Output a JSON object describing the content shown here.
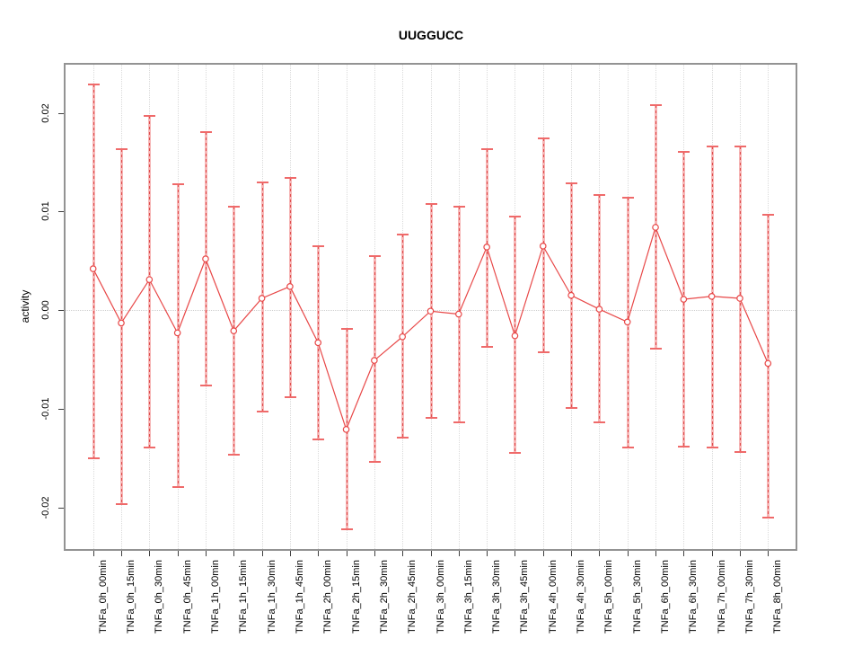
{
  "title": "UUGGUCC",
  "chart_data": {
    "type": "line",
    "title": "UUGGUCC",
    "xlabel": "",
    "ylabel": "activity",
    "ylim": [
      -0.0246,
      0.0249
    ],
    "grid": "vertical dotted gridline per category; dotted horizontal reference line at y=0",
    "legend": "none",
    "marker": "open-circle",
    "error_bars": true,
    "yticks": [
      0.02,
      0.01,
      0.0,
      -0.01,
      -0.02
    ],
    "ytick_labels": [
      "0.02",
      "0.01",
      "0.00",
      "-0.01",
      "-0.02"
    ],
    "categories": [
      "TNFa_0h_00min",
      "TNFa_0h_15min",
      "TNFa_0h_30min",
      "TNFa_0h_45min",
      "TNFa_1h_00min",
      "TNFa_1h_15min",
      "TNFa_1h_30min",
      "TNFa_1h_45min",
      "TNFa_2h_00min",
      "TNFa_2h_15min",
      "TNFa_2h_30min",
      "TNFa_2h_45min",
      "TNFa_3h_00min",
      "TNFa_3h_15min",
      "TNFa_3h_30min",
      "TNFa_3h_45min",
      "TNFa_4h_00min",
      "TNFa_4h_30min",
      "TNFa_5h_00min",
      "TNFa_5h_30min",
      "TNFa_6h_00min",
      "TNFa_6h_30min",
      "TNFa_7h_00min",
      "TNFa_7h_30min",
      "TNFa_8h_00min"
    ],
    "series": [
      {
        "name": "activity",
        "values": [
          0.0042,
          -0.0013,
          0.0031,
          -0.0023,
          0.0052,
          -0.0021,
          0.0012,
          0.0024,
          -0.0033,
          -0.0121,
          -0.0051,
          -0.0027,
          -0.0001,
          -0.0004,
          0.0064,
          -0.0026,
          0.0065,
          0.0015,
          0.0001,
          -0.0012,
          0.0084,
          0.0011,
          0.0014,
          0.0012,
          -0.0054
        ],
        "upper": [
          0.0229,
          0.0163,
          0.0197,
          0.0128,
          0.0181,
          0.0105,
          0.013,
          0.0134,
          0.0065,
          -0.0019,
          0.0055,
          0.0077,
          0.0108,
          0.0105,
          0.0163,
          0.0095,
          0.0174,
          0.0129,
          0.0117,
          0.0114,
          0.0208,
          0.0161,
          0.0166,
          0.0166,
          0.0097
        ],
        "lower": [
          -0.015,
          -0.0197,
          -0.0139,
          -0.0179,
          -0.0076,
          -0.0147,
          -0.0103,
          -0.0088,
          -0.0131,
          -0.0222,
          -0.0154,
          -0.0129,
          -0.0109,
          -0.0114,
          -0.0037,
          -0.0145,
          -0.0043,
          -0.0099,
          -0.0114,
          -0.0139,
          -0.0039,
          -0.0138,
          -0.0139,
          -0.0144,
          -0.021
        ]
      }
    ],
    "colors": {
      "line": "#e84848",
      "marker": "#e84848",
      "error_bar_stem": "#f6b6b6",
      "error_bar_dash": "#e04d4d",
      "error_bar_cap": "#ef6a6a",
      "gridline": "#dadada",
      "zero_line": "#cfcfcf",
      "plot_border": "#939393",
      "text": "#000000"
    }
  }
}
